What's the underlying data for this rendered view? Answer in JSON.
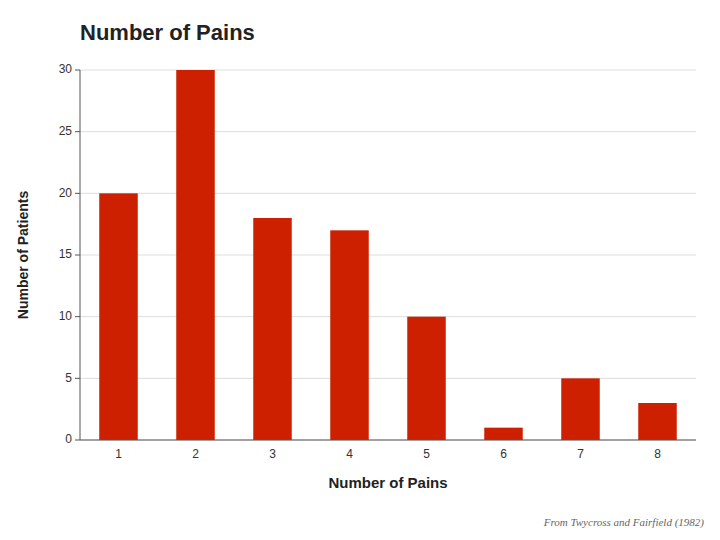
{
  "chart_data": {
    "type": "bar",
    "title": "Number of Pains",
    "x_label": "Number of Pains",
    "y_label": "Number of Patients",
    "categories": [
      1,
      2,
      3,
      4,
      5,
      6,
      7,
      8
    ],
    "values": [
      20,
      30,
      18,
      17,
      10,
      1,
      5,
      3
    ],
    "color": "#CC2000",
    "ylim": [
      0,
      30
    ],
    "yticks": [
      0,
      5,
      10,
      15,
      20,
      25,
      30
    ],
    "grid": true,
    "annotations": [
      "From Twycross and Fairfield (1982)"
    ]
  }
}
